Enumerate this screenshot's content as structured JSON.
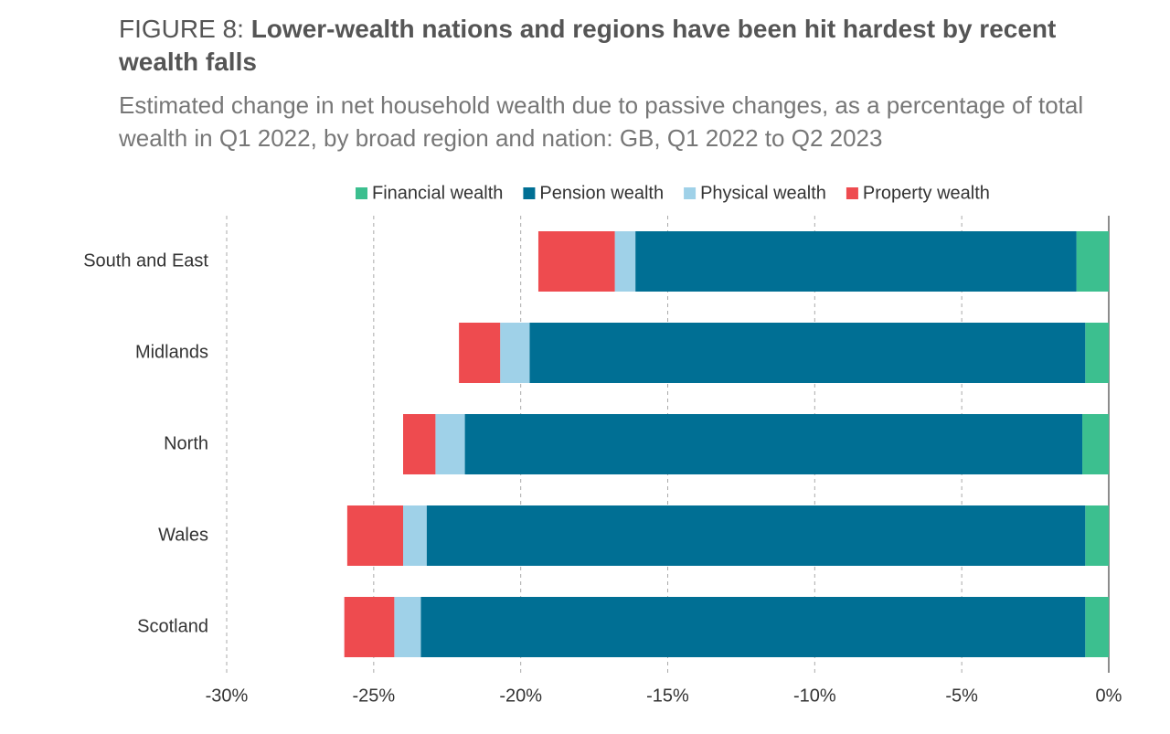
{
  "chart_data": {
    "type": "stacked-bar-horizontal",
    "title_prefix": "FIGURE 8:",
    "title": "Lower-wealth nations and regions have been hit hardest by recent wealth falls",
    "subtitle": "Estimated change in net household wealth due to passive changes, as a percentage of total wealth in Q1 2022, by broad region and nation: GB, Q1 2022 to Q2 2023",
    "categories": [
      "South and East",
      "Midlands",
      "North",
      "Wales",
      "Scotland"
    ],
    "series": [
      {
        "name": "Financial wealth",
        "color": "#3cbf8f",
        "values": [
          -1.1,
          -0.8,
          -0.9,
          -0.8,
          -0.8
        ]
      },
      {
        "name": "Pension wealth",
        "color": "#006f94",
        "values": [
          -15.0,
          -18.9,
          -21.0,
          -22.4,
          -22.6
        ]
      },
      {
        "name": "Physical wealth",
        "color": "#9fd1e8",
        "values": [
          -0.7,
          -1.0,
          -1.0,
          -0.8,
          -0.9
        ]
      },
      {
        "name": "Property wealth",
        "color": "#ee4b4f",
        "values": [
          -2.6,
          -1.4,
          -1.1,
          -1.9,
          -1.7
        ]
      }
    ],
    "xlim": [
      -30,
      0
    ],
    "xticks": [
      {
        "value": -30,
        "label": "-30%"
      },
      {
        "value": -25,
        "label": "-25%"
      },
      {
        "value": -20,
        "label": "-20%"
      },
      {
        "value": -15,
        "label": "-15%"
      },
      {
        "value": -10,
        "label": "-10%"
      },
      {
        "value": -5,
        "label": "-5%"
      },
      {
        "value": 0,
        "label": "0%"
      }
    ],
    "grid": true,
    "legend": "top"
  }
}
